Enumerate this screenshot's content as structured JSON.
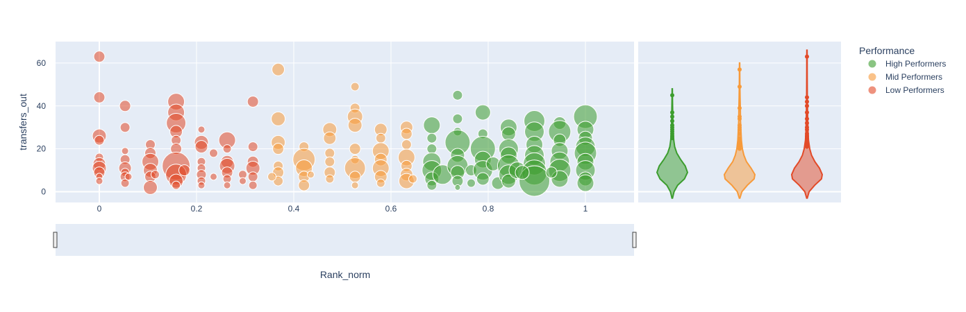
{
  "chart_data": {
    "type": "scatter",
    "title": "",
    "xlabel": "Rank_norm",
    "ylabel": "transfers_out",
    "xlim": [
      -0.09,
      1.1
    ],
    "ylim": [
      -5,
      70
    ],
    "x_ticks": [
      0,
      0.2,
      0.4,
      0.6,
      0.8,
      1
    ],
    "x_tick_labels": [
      "0",
      "0.2",
      "0.4",
      "0.6",
      "0.8",
      "1"
    ],
    "y_ticks": [
      0,
      20,
      40,
      60
    ],
    "y_tick_labels": [
      "0",
      "20",
      "40",
      "60"
    ],
    "grid": true,
    "legend": {
      "title": "Performance",
      "position": "right",
      "entries": [
        "High Performers",
        "Mid Performers",
        "Low Performers"
      ]
    },
    "range_slider": true,
    "series": [
      {
        "name": "Low Performers",
        "color": "#E24A28",
        "points": [
          {
            "x": 0,
            "y": 63,
            "s": 8
          },
          {
            "x": 0,
            "y": 44,
            "s": 8
          },
          {
            "x": 0,
            "y": 26,
            "s": 10
          },
          {
            "x": 0,
            "y": 24,
            "s": 7
          },
          {
            "x": 0,
            "y": 16,
            "s": 6
          },
          {
            "x": 0,
            "y": 13,
            "s": 9
          },
          {
            "x": 0,
            "y": 11,
            "s": 10
          },
          {
            "x": 0,
            "y": 9,
            "s": 8
          },
          {
            "x": 0,
            "y": 7,
            "s": 5
          },
          {
            "x": 0,
            "y": 5,
            "s": 5
          },
          {
            "x": 0.053,
            "y": 40,
            "s": 8
          },
          {
            "x": 0.053,
            "y": 30,
            "s": 7
          },
          {
            "x": 0.053,
            "y": 19,
            "s": 5
          },
          {
            "x": 0.053,
            "y": 15,
            "s": 7
          },
          {
            "x": 0.053,
            "y": 11,
            "s": 9
          },
          {
            "x": 0.053,
            "y": 9,
            "s": 6
          },
          {
            "x": 0.053,
            "y": 7,
            "s": 7
          },
          {
            "x": 0.053,
            "y": 4,
            "s": 6
          },
          {
            "x": 0.06,
            "y": 7,
            "s": 5
          },
          {
            "x": 0.105,
            "y": 22,
            "s": 7
          },
          {
            "x": 0.105,
            "y": 18,
            "s": 8
          },
          {
            "x": 0.105,
            "y": 14,
            "s": 12
          },
          {
            "x": 0.105,
            "y": 10,
            "s": 10
          },
          {
            "x": 0.105,
            "y": 7,
            "s": 8
          },
          {
            "x": 0.105,
            "y": 2,
            "s": 10
          },
          {
            "x": 0.115,
            "y": 8,
            "s": 6
          },
          {
            "x": 0.158,
            "y": 42,
            "s": 12
          },
          {
            "x": 0.158,
            "y": 37,
            "s": 12
          },
          {
            "x": 0.158,
            "y": 32,
            "s": 14
          },
          {
            "x": 0.158,
            "y": 28,
            "s": 9
          },
          {
            "x": 0.158,
            "y": 24,
            "s": 7
          },
          {
            "x": 0.158,
            "y": 20,
            "s": 8
          },
          {
            "x": 0.158,
            "y": 12,
            "s": 20
          },
          {
            "x": 0.158,
            "y": 8,
            "s": 15
          },
          {
            "x": 0.158,
            "y": 5,
            "s": 10
          },
          {
            "x": 0.158,
            "y": 3,
            "s": 6
          },
          {
            "x": 0.175,
            "y": 10,
            "s": 8
          },
          {
            "x": 0.21,
            "y": 29,
            "s": 5
          },
          {
            "x": 0.21,
            "y": 23,
            "s": 10
          },
          {
            "x": 0.21,
            "y": 21,
            "s": 9
          },
          {
            "x": 0.21,
            "y": 14,
            "s": 6
          },
          {
            "x": 0.21,
            "y": 11,
            "s": 6
          },
          {
            "x": 0.21,
            "y": 8,
            "s": 7
          },
          {
            "x": 0.21,
            "y": 5,
            "s": 6
          },
          {
            "x": 0.21,
            "y": 3,
            "s": 5
          },
          {
            "x": 0.235,
            "y": 18,
            "s": 6
          },
          {
            "x": 0.235,
            "y": 7,
            "s": 5
          },
          {
            "x": 0.263,
            "y": 24,
            "s": 12
          },
          {
            "x": 0.263,
            "y": 20,
            "s": 6
          },
          {
            "x": 0.263,
            "y": 14,
            "s": 9
          },
          {
            "x": 0.263,
            "y": 12,
            "s": 11
          },
          {
            "x": 0.263,
            "y": 9,
            "s": 8
          },
          {
            "x": 0.263,
            "y": 6,
            "s": 6
          },
          {
            "x": 0.263,
            "y": 3,
            "s": 5
          },
          {
            "x": 0.295,
            "y": 8,
            "s": 6
          },
          {
            "x": 0.295,
            "y": 5,
            "s": 5
          },
          {
            "x": 0.316,
            "y": 42,
            "s": 8
          },
          {
            "x": 0.316,
            "y": 21,
            "s": 7
          },
          {
            "x": 0.316,
            "y": 14,
            "s": 8
          },
          {
            "x": 0.316,
            "y": 11,
            "s": 10
          },
          {
            "x": 0.316,
            "y": 7,
            "s": 7
          },
          {
            "x": 0.316,
            "y": 3,
            "s": 6
          }
        ]
      },
      {
        "name": "Mid Performers",
        "color": "#F79A3A",
        "points": [
          {
            "x": 0.368,
            "y": 57,
            "s": 9
          },
          {
            "x": 0.368,
            "y": 34,
            "s": 10
          },
          {
            "x": 0.368,
            "y": 23,
            "s": 10
          },
          {
            "x": 0.368,
            "y": 20,
            "s": 8
          },
          {
            "x": 0.368,
            "y": 12,
            "s": 7
          },
          {
            "x": 0.368,
            "y": 9,
            "s": 8
          },
          {
            "x": 0.368,
            "y": 5,
            "s": 7
          },
          {
            "x": 0.355,
            "y": 7,
            "s": 6
          },
          {
            "x": 0.421,
            "y": 21,
            "s": 7
          },
          {
            "x": 0.421,
            "y": 15,
            "s": 16
          },
          {
            "x": 0.421,
            "y": 11,
            "s": 12
          },
          {
            "x": 0.421,
            "y": 7,
            "s": 8
          },
          {
            "x": 0.421,
            "y": 3,
            "s": 8
          },
          {
            "x": 0.435,
            "y": 8,
            "s": 5
          },
          {
            "x": 0.474,
            "y": 29,
            "s": 10
          },
          {
            "x": 0.474,
            "y": 25,
            "s": 9
          },
          {
            "x": 0.474,
            "y": 18,
            "s": 7
          },
          {
            "x": 0.474,
            "y": 14,
            "s": 7
          },
          {
            "x": 0.474,
            "y": 9,
            "s": 8
          },
          {
            "x": 0.474,
            "y": 6,
            "s": 6
          },
          {
            "x": 0.526,
            "y": 49,
            "s": 6
          },
          {
            "x": 0.526,
            "y": 39,
            "s": 7
          },
          {
            "x": 0.526,
            "y": 35,
            "s": 11
          },
          {
            "x": 0.526,
            "y": 31,
            "s": 10
          },
          {
            "x": 0.526,
            "y": 20,
            "s": 8
          },
          {
            "x": 0.526,
            "y": 15,
            "s": 6
          },
          {
            "x": 0.526,
            "y": 11,
            "s": 15
          },
          {
            "x": 0.526,
            "y": 7,
            "s": 8
          },
          {
            "x": 0.526,
            "y": 3,
            "s": 5
          },
          {
            "x": 0.579,
            "y": 29,
            "s": 9
          },
          {
            "x": 0.579,
            "y": 25,
            "s": 7
          },
          {
            "x": 0.579,
            "y": 19,
            "s": 12
          },
          {
            "x": 0.579,
            "y": 15,
            "s": 9
          },
          {
            "x": 0.579,
            "y": 11,
            "s": 12
          },
          {
            "x": 0.579,
            "y": 7,
            "s": 9
          },
          {
            "x": 0.579,
            "y": 4,
            "s": 6
          },
          {
            "x": 0.632,
            "y": 30,
            "s": 9
          },
          {
            "x": 0.632,
            "y": 27,
            "s": 8
          },
          {
            "x": 0.632,
            "y": 22,
            "s": 7
          },
          {
            "x": 0.632,
            "y": 16,
            "s": 12
          },
          {
            "x": 0.632,
            "y": 12,
            "s": 8
          },
          {
            "x": 0.632,
            "y": 8,
            "s": 9
          },
          {
            "x": 0.632,
            "y": 5,
            "s": 11
          },
          {
            "x": 0.645,
            "y": 6,
            "s": 6
          }
        ]
      },
      {
        "name": "High Performers",
        "color": "#3C9D2E",
        "points": [
          {
            "x": 0.684,
            "y": 31,
            "s": 12
          },
          {
            "x": 0.684,
            "y": 25,
            "s": 7
          },
          {
            "x": 0.684,
            "y": 20,
            "s": 7
          },
          {
            "x": 0.684,
            "y": 14,
            "s": 13
          },
          {
            "x": 0.684,
            "y": 10,
            "s": 14
          },
          {
            "x": 0.684,
            "y": 6,
            "s": 10
          },
          {
            "x": 0.684,
            "y": 3,
            "s": 7
          },
          {
            "x": 0.706,
            "y": 8,
            "s": 14
          },
          {
            "x": 0.737,
            "y": 45,
            "s": 7
          },
          {
            "x": 0.737,
            "y": 34,
            "s": 7
          },
          {
            "x": 0.737,
            "y": 28,
            "s": 6
          },
          {
            "x": 0.737,
            "y": 23,
            "s": 18
          },
          {
            "x": 0.737,
            "y": 17,
            "s": 10
          },
          {
            "x": 0.737,
            "y": 12,
            "s": 15
          },
          {
            "x": 0.737,
            "y": 9,
            "s": 10
          },
          {
            "x": 0.737,
            "y": 5,
            "s": 8
          },
          {
            "x": 0.737,
            "y": 2,
            "s": 4
          },
          {
            "x": 0.765,
            "y": 10,
            "s": 8
          },
          {
            "x": 0.765,
            "y": 4,
            "s": 6
          },
          {
            "x": 0.789,
            "y": 37,
            "s": 11
          },
          {
            "x": 0.789,
            "y": 27,
            "s": 7
          },
          {
            "x": 0.789,
            "y": 20,
            "s": 18
          },
          {
            "x": 0.789,
            "y": 15,
            "s": 12
          },
          {
            "x": 0.789,
            "y": 10,
            "s": 14
          },
          {
            "x": 0.789,
            "y": 6,
            "s": 9
          },
          {
            "x": 0.81,
            "y": 13,
            "s": 10
          },
          {
            "x": 0.82,
            "y": 4,
            "s": 9
          },
          {
            "x": 0.842,
            "y": 30,
            "s": 12
          },
          {
            "x": 0.842,
            "y": 27,
            "s": 10
          },
          {
            "x": 0.842,
            "y": 20,
            "s": 14
          },
          {
            "x": 0.842,
            "y": 17,
            "s": 12
          },
          {
            "x": 0.842,
            "y": 12,
            "s": 16
          },
          {
            "x": 0.842,
            "y": 8,
            "s": 14
          },
          {
            "x": 0.842,
            "y": 5,
            "s": 10
          },
          {
            "x": 0.86,
            "y": 10,
            "s": 12
          },
          {
            "x": 0.895,
            "y": 33,
            "s": 15
          },
          {
            "x": 0.895,
            "y": 28,
            "s": 14
          },
          {
            "x": 0.895,
            "y": 22,
            "s": 12
          },
          {
            "x": 0.895,
            "y": 17,
            "s": 14
          },
          {
            "x": 0.895,
            "y": 13,
            "s": 16
          },
          {
            "x": 0.895,
            "y": 9,
            "s": 18
          },
          {
            "x": 0.895,
            "y": 5,
            "s": 22
          },
          {
            "x": 0.87,
            "y": 9,
            "s": 10
          },
          {
            "x": 0.947,
            "y": 32,
            "s": 9
          },
          {
            "x": 0.947,
            "y": 28,
            "s": 16
          },
          {
            "x": 0.947,
            "y": 24,
            "s": 9
          },
          {
            "x": 0.947,
            "y": 19,
            "s": 12
          },
          {
            "x": 0.947,
            "y": 14,
            "s": 14
          },
          {
            "x": 0.947,
            "y": 10,
            "s": 16
          },
          {
            "x": 0.947,
            "y": 6,
            "s": 12
          },
          {
            "x": 0.93,
            "y": 9,
            "s": 8
          },
          {
            "x": 1,
            "y": 35,
            "s": 17
          },
          {
            "x": 1,
            "y": 29,
            "s": 12
          },
          {
            "x": 1,
            "y": 25,
            "s": 10
          },
          {
            "x": 1,
            "y": 21,
            "s": 14
          },
          {
            "x": 1,
            "y": 18,
            "s": 16
          },
          {
            "x": 1,
            "y": 14,
            "s": 12
          },
          {
            "x": 1,
            "y": 10,
            "s": 14
          },
          {
            "x": 1,
            "y": 6,
            "s": 10
          },
          {
            "x": 1,
            "y": 4,
            "s": 12
          }
        ]
      }
    ],
    "violins": [
      {
        "name": "High Performers",
        "color": "#3C9D2E",
        "y_min": -3,
        "y_max": 48,
        "density": [
          [
            -3,
            0.02
          ],
          [
            0,
            0.12
          ],
          [
            3,
            0.35
          ],
          [
            6,
            0.8
          ],
          [
            9,
            1.0
          ],
          [
            12,
            0.85
          ],
          [
            15,
            0.55
          ],
          [
            18,
            0.3
          ],
          [
            21,
            0.16
          ],
          [
            24,
            0.1
          ],
          [
            28,
            0.06
          ],
          [
            32,
            0.04
          ],
          [
            37,
            0.03
          ],
          [
            42,
            0.02
          ],
          [
            48,
            0.01
          ]
        ],
        "outliers": [
          45,
          37,
          35,
          33,
          31,
          30,
          29,
          28,
          27,
          26,
          25
        ]
      },
      {
        "name": "Mid Performers",
        "color": "#F79A3A",
        "y_min": -3,
        "y_max": 60,
        "density": [
          [
            -3,
            0.02
          ],
          [
            0,
            0.15
          ],
          [
            3,
            0.5
          ],
          [
            6,
            0.95
          ],
          [
            8,
            1.0
          ],
          [
            11,
            0.75
          ],
          [
            14,
            0.45
          ],
          [
            17,
            0.28
          ],
          [
            20,
            0.18
          ],
          [
            24,
            0.12
          ],
          [
            28,
            0.09
          ],
          [
            33,
            0.06
          ],
          [
            38,
            0.05
          ],
          [
            44,
            0.03
          ],
          [
            50,
            0.02
          ],
          [
            55,
            0.015
          ],
          [
            60,
            0.01
          ]
        ],
        "outliers": [
          57,
          49,
          39,
          35,
          34,
          31,
          30,
          29,
          27,
          25,
          24,
          23,
          22,
          21,
          20
        ]
      },
      {
        "name": "Low Performers",
        "color": "#E24A28",
        "y_min": -3,
        "y_max": 66,
        "density": [
          [
            -3,
            0.02
          ],
          [
            0,
            0.14
          ],
          [
            3,
            0.5
          ],
          [
            6,
            0.95
          ],
          [
            8,
            1.0
          ],
          [
            11,
            0.82
          ],
          [
            14,
            0.52
          ],
          [
            17,
            0.3
          ],
          [
            20,
            0.18
          ],
          [
            24,
            0.1
          ],
          [
            28,
            0.07
          ],
          [
            33,
            0.05
          ],
          [
            38,
            0.035
          ],
          [
            44,
            0.025
          ],
          [
            50,
            0.02
          ],
          [
            57,
            0.015
          ],
          [
            63,
            0.012
          ],
          [
            66,
            0.01
          ]
        ],
        "outliers": [
          63,
          44,
          42,
          40,
          37,
          34,
          32,
          30,
          29,
          27,
          26,
          25,
          24,
          23,
          22,
          21
        ]
      }
    ]
  }
}
